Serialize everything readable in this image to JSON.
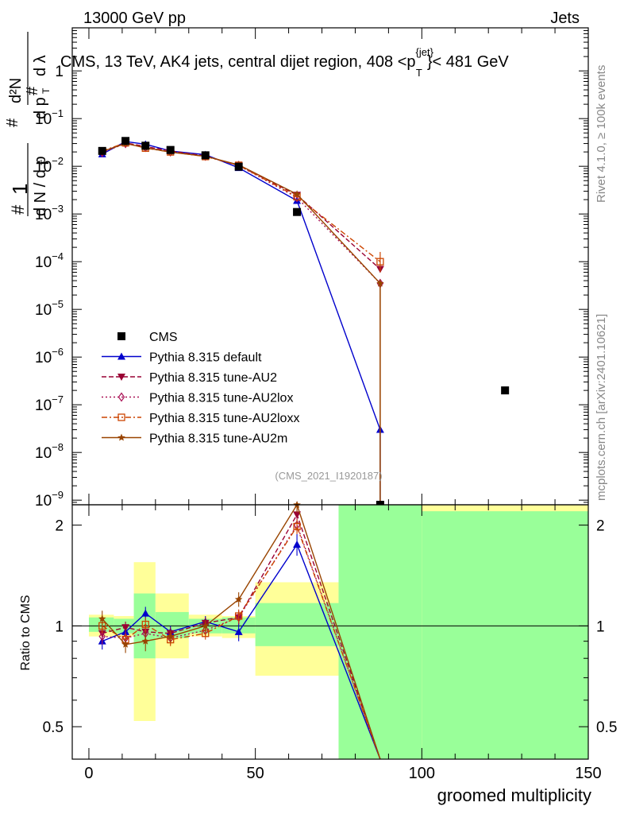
{
  "header": {
    "left": "13000 GeV pp",
    "right": "Jets"
  },
  "side_labels": {
    "rivet": "Rivet 4.1.0, ≥ 100k events",
    "mcplots": "mcplots.cern.ch [arXiv:2401.10621]"
  },
  "chart_data": [
    {
      "id": "main",
      "type": "line",
      "title": "CMS, 13 TeV, AK4 jets, central dijet region, 408 <p",
      "title_sup": "{jet}",
      "title_sub": "T",
      "title_tail": "}< 481 GeV",
      "ylabel": "(1/dN/dpT) d²N/dpT dλ",
      "yscale": "log",
      "ylim": [
        8e-10,
        8
      ],
      "xlim": [
        -5,
        150
      ],
      "ytick_mantissa": "10",
      "yticks": [
        {
          "value": 1,
          "label": "1",
          "exp": ""
        },
        {
          "value": 0.1,
          "label": "10",
          "exp": "−1"
        },
        {
          "value": 0.01,
          "label": "10",
          "exp": "−2"
        },
        {
          "value": 0.001,
          "label": "10",
          "exp": "−3"
        },
        {
          "value": 0.0001,
          "label": "10",
          "exp": "−4"
        },
        {
          "value": 1e-05,
          "label": "10",
          "exp": "−5"
        },
        {
          "value": 1e-06,
          "label": "10",
          "exp": "−6"
        },
        {
          "value": 1e-07,
          "label": "10",
          "exp": "−7"
        },
        {
          "value": 1e-08,
          "label": "10",
          "exp": "−8"
        },
        {
          "value": 1e-09,
          "label": "10",
          "exp": "−9"
        }
      ],
      "watermark": "(CMS_2021_I1920187)",
      "data_series": {
        "name": "CMS",
        "x": [
          4,
          11,
          17,
          24.5,
          35,
          45,
          62.5,
          125
        ],
        "y": [
          0.021,
          0.034,
          0.027,
          0.022,
          0.017,
          0.0098,
          0.0011,
          2e-07
        ]
      },
      "series": [
        {
          "name": "Pythia 8.315 default",
          "color": "#0000cc",
          "dash": "",
          "marker": "triangle-up",
          "x": [
            4,
            11,
            17,
            24.5,
            35,
            45,
            62.5,
            87.5,
            87.5
          ],
          "y": [
            0.018,
            0.033,
            0.029,
            0.021,
            0.0175,
            0.0093,
            0.0019,
            3e-08,
            8e-10
          ]
        },
        {
          "name": "Pythia 8.315 tune-AU2",
          "color": "#990033",
          "dash": "6,3",
          "marker": "triangle-down",
          "x": [
            4,
            11,
            17,
            24.5,
            35,
            45,
            62.5,
            87.5
          ],
          "y": [
            0.02,
            0.031,
            0.026,
            0.021,
            0.0165,
            0.0104,
            0.0025,
            7e-05
          ]
        },
        {
          "name": "Pythia 8.315 tune-AU2lox",
          "color": "#aa1155",
          "dash": "2,3",
          "marker": "diamond",
          "x": [
            4,
            11,
            17,
            24.5,
            35,
            45,
            62.5,
            87.5
          ],
          "y": [
            0.0195,
            0.03,
            0.025,
            0.02,
            0.0163,
            0.0104,
            0.0022,
            3.5e-05
          ]
        },
        {
          "name": "Pythia 8.315 tune-AU2loxx",
          "color": "#cc4400",
          "dash": "7,3,2,3",
          "marker": "square-open",
          "x": [
            4,
            11,
            17,
            24.5,
            35,
            45,
            62.5,
            87.5
          ],
          "y": [
            0.021,
            0.031,
            0.024,
            0.02,
            0.016,
            0.0105,
            0.0023,
            0.0001
          ]
        },
        {
          "name": "Pythia 8.315 tune-AU2m",
          "color": "#994400",
          "dash": "",
          "marker": "star",
          "x": [
            4,
            11,
            17,
            24.5,
            35,
            45,
            62.5,
            87.5,
            87.5
          ],
          "y": [
            0.0205,
            0.03,
            0.0245,
            0.0198,
            0.0162,
            0.0107,
            0.0026,
            3.5e-05,
            8e-10
          ]
        }
      ]
    },
    {
      "id": "ratio",
      "type": "line",
      "xlabel": "groomed multiplicity",
      "ylabel": "Ratio to CMS",
      "yscale": "log",
      "ylim": [
        0.4,
        2.3
      ],
      "xlim": [
        -5,
        150
      ],
      "xticks": [
        0,
        50,
        100,
        150
      ],
      "yticks": [
        0.5,
        1,
        2
      ],
      "bands": [
        {
          "x0": 0,
          "x1": 7.5,
          "y1_lo": 0.96,
          "y1_hi": 1.06,
          "y2_lo": 0.93,
          "y2_hi": 1.08
        },
        {
          "x0": 7.5,
          "x1": 13.5,
          "y1_lo": 0.95,
          "y1_hi": 1.05,
          "y2_lo": 0.93,
          "y2_hi": 1.07
        },
        {
          "x0": 13.5,
          "x1": 20,
          "y1_lo": 0.8,
          "y1_hi": 1.25,
          "y2_lo": 0.52,
          "y2_hi": 1.55
        },
        {
          "x0": 20,
          "x1": 30,
          "y1_lo": 0.92,
          "y1_hi": 1.1,
          "y2_lo": 0.8,
          "y2_hi": 1.25
        },
        {
          "x0": 30,
          "x1": 40,
          "y1_lo": 0.95,
          "y1_hi": 1.05,
          "y2_lo": 0.93,
          "y2_hi": 1.08
        },
        {
          "x0": 40,
          "x1": 50,
          "y1_lo": 0.95,
          "y1_hi": 1.06,
          "y2_lo": 0.92,
          "y2_hi": 1.07
        },
        {
          "x0": 50,
          "x1": 75,
          "y1_lo": 0.87,
          "y1_hi": 1.17,
          "y2_lo": 0.71,
          "y2_hi": 1.35
        },
        {
          "x0": 75,
          "x1": 100,
          "y1_lo": 0.3,
          "y1_hi": 2.6,
          "y2_lo": 0.3,
          "y2_hi": 2.6
        },
        {
          "x0": 100,
          "x1": 150,
          "y1_lo": 0.3,
          "y1_hi": 2.2,
          "y2_lo": 0.3,
          "y2_hi": 2.6
        }
      ],
      "series": [
        {
          "name": "Pythia 8.315 default",
          "color": "#0000cc",
          "dash": "",
          "marker": "triangle-up",
          "x": [
            4,
            11,
            17,
            24.5,
            35,
            45,
            62.5,
            87.5
          ],
          "y": [
            0.9,
            0.96,
            1.09,
            0.96,
            1.03,
            0.96,
            1.75,
            0.3
          ],
          "err": [
            0.05,
            0.05,
            0.05,
            0.04,
            0.04,
            0.06,
            0.13,
            0
          ]
        },
        {
          "name": "Pythia 8.315 tune-AU2",
          "color": "#990033",
          "dash": "6,3",
          "marker": "triangle-down",
          "x": [
            4,
            11,
            17,
            24.5,
            35,
            45,
            62.5,
            87.5
          ],
          "y": [
            0.95,
            0.99,
            0.96,
            0.95,
            1.02,
            1.06,
            2.15,
            0.3
          ],
          "err": [
            0.05,
            0.04,
            0.05,
            0.04,
            0.04,
            0.05,
            0.1,
            0
          ]
        },
        {
          "name": "Pythia 8.315 tune-AU2lox",
          "color": "#aa1155",
          "dash": "2,3",
          "marker": "diamond",
          "x": [
            4,
            11,
            17,
            24.5,
            35,
            45,
            62.5,
            87.5
          ],
          "y": [
            0.93,
            0.92,
            0.95,
            0.92,
            0.97,
            1.06,
            2.0,
            0.3
          ],
          "err": [
            0.05,
            0.04,
            0.05,
            0.04,
            0.04,
            0.05,
            0.1,
            0
          ]
        },
        {
          "name": "Pythia 8.315 tune-AU2loxx",
          "color": "#cc4400",
          "dash": "7,3,2,3",
          "marker": "square-open",
          "x": [
            4,
            11,
            17,
            24.5,
            35,
            45,
            62.5,
            87.5
          ],
          "y": [
            1.0,
            0.91,
            1.01,
            0.91,
            0.95,
            1.07,
            1.98,
            0.3
          ],
          "err": [
            0.05,
            0.04,
            0.05,
            0.04,
            0.04,
            0.05,
            0.1,
            0
          ]
        },
        {
          "name": "Pythia 8.315 tune-AU2m",
          "color": "#994400",
          "dash": "",
          "marker": "star",
          "x": [
            4,
            11,
            17,
            24.5,
            35,
            45,
            62.5,
            87.5
          ],
          "y": [
            1.05,
            0.88,
            0.9,
            0.93,
            1.0,
            1.2,
            2.3,
            0.3
          ],
          "err": [
            0.06,
            0.05,
            0.06,
            0.04,
            0.04,
            0.06,
            0.12,
            0
          ]
        }
      ]
    }
  ],
  "legend": {
    "position": "middle-left",
    "entries": [
      {
        "label": "CMS",
        "marker": "square",
        "color": "#000000",
        "dash": ""
      },
      {
        "label": "Pythia 8.315 default",
        "marker": "triangle-up",
        "color": "#0000cc",
        "dash": ""
      },
      {
        "label": "Pythia 8.315 tune-AU2",
        "marker": "triangle-down",
        "color": "#990033",
        "dash": "6,3"
      },
      {
        "label": "Pythia 8.315 tune-AU2lox",
        "marker": "diamond",
        "color": "#aa1155",
        "dash": "2,3"
      },
      {
        "label": "Pythia 8.315 tune-AU2loxx",
        "marker": "square-open",
        "color": "#cc4400",
        "dash": "7,3,2,3"
      },
      {
        "label": "Pythia 8.315 tune-AU2m",
        "marker": "star",
        "color": "#994400",
        "dash": ""
      }
    ]
  },
  "colors": {
    "band_inner": "#99ff99",
    "band_outer": "#ffff99"
  }
}
